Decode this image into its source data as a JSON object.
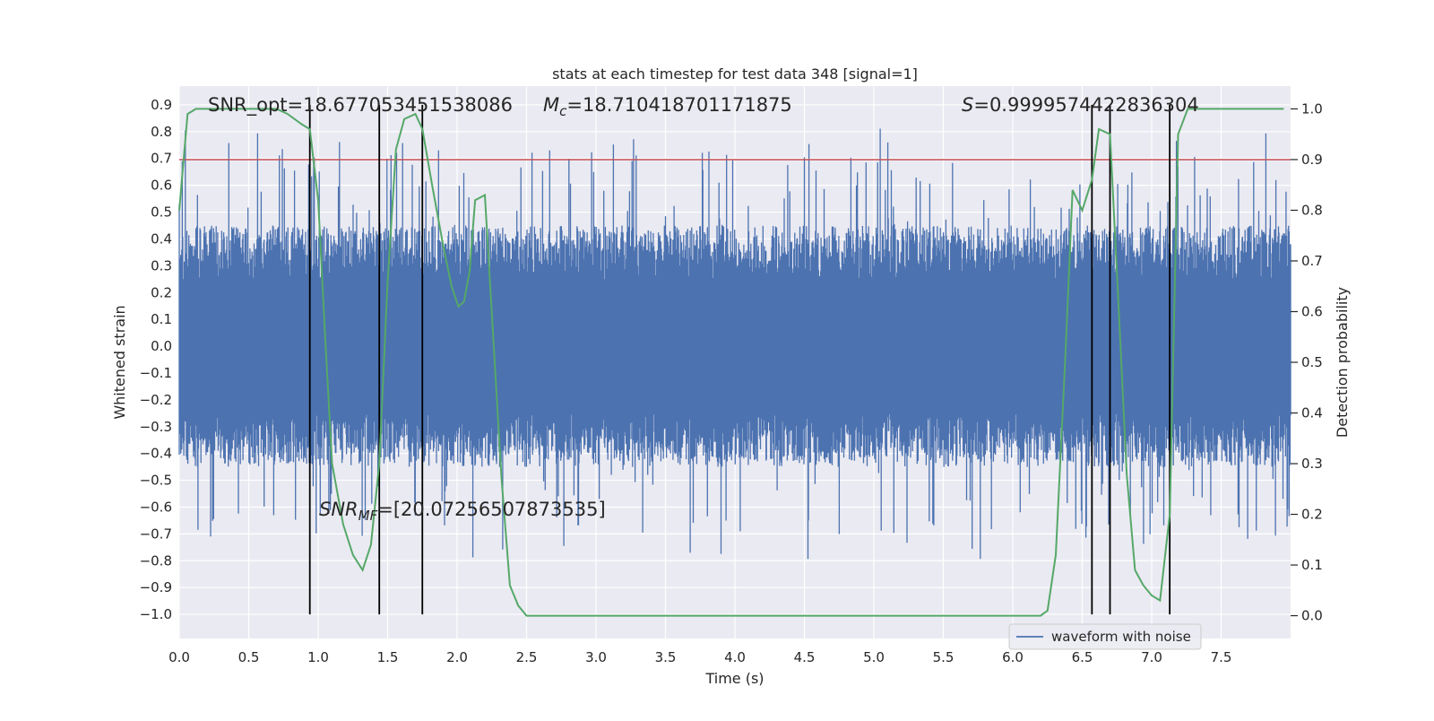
{
  "chart_data": {
    "type": "line",
    "title": "stats at each timestep for test data 348 [signal=1]",
    "xlabel": "Time (s)",
    "ylabel": "Whitened strain",
    "ylabel_right": "Detection probability",
    "xlim": [
      0.0,
      8.0
    ],
    "ylim": [
      -1.09,
      0.97
    ],
    "ylim_right": [
      -0.045,
      1.045
    ],
    "x_ticks": [
      0.0,
      0.5,
      1.0,
      1.5,
      2.0,
      2.5,
      3.0,
      3.5,
      4.0,
      4.5,
      5.0,
      5.5,
      6.0,
      6.5,
      7.0,
      7.5
    ],
    "x_tick_labels": [
      "0.0",
      "0.5",
      "1.0",
      "1.5",
      "2.0",
      "2.5",
      "3.0",
      "3.5",
      "4.0",
      "4.5",
      "5.0",
      "5.5",
      "6.0",
      "6.5",
      "7.0",
      "7.5"
    ],
    "y_ticks": [
      0.9,
      0.8,
      0.7,
      0.6,
      0.5,
      0.4,
      0.3,
      0.2,
      0.1,
      0.0,
      -0.1,
      -0.2,
      -0.3,
      -0.4,
      -0.5,
      -0.6,
      -0.7,
      -0.8,
      -0.9,
      -1.0
    ],
    "y_tick_labels": [
      "0.9",
      "0.8",
      "0.7",
      "0.6",
      "0.5",
      "0.4",
      "0.3",
      "0.2",
      "0.1",
      "0.0",
      "−0.1",
      "−0.2",
      "−0.3",
      "−0.4",
      "−0.5",
      "−0.6",
      "−0.7",
      "−0.8",
      "−0.9",
      "−1.0"
    ],
    "y_right_ticks": [
      1.0,
      0.9,
      0.8,
      0.7,
      0.6,
      0.5,
      0.4,
      0.3,
      0.2,
      0.1,
      0.0
    ],
    "y_right_tick_labels": [
      "1.0",
      "0.9",
      "0.8",
      "0.7",
      "0.6",
      "0.5",
      "0.4",
      "0.3",
      "0.2",
      "0.1",
      "0.0"
    ],
    "grid": true,
    "legend": {
      "position": "bottom-right",
      "entries": [
        {
          "label": "waveform with noise",
          "color": "#4c72b0"
        }
      ]
    },
    "threshold_line": {
      "y_right": 0.9,
      "color": "#c44e52"
    },
    "vertical_lines": {
      "x": [
        0.94,
        1.44,
        1.75,
        6.57,
        6.7,
        7.13
      ],
      "y_from": -1.0,
      "y_to": 0.9,
      "color": "#000000"
    },
    "waveform": {
      "name": "waveform with noise",
      "color": "#4c72b0",
      "n_samples": 2200,
      "core_amplitude": 0.45,
      "seed": 348
    },
    "series": [
      {
        "name": "detection probability",
        "axis": "right",
        "color": "#55a868",
        "x": [
          0.0,
          0.06,
          0.12,
          0.2,
          0.3,
          0.4,
          0.5,
          0.6,
          0.7,
          0.78,
          0.88,
          0.94,
          1.0,
          1.05,
          1.1,
          1.18,
          1.25,
          1.32,
          1.38,
          1.44,
          1.5,
          1.56,
          1.62,
          1.7,
          1.75,
          1.82,
          1.9,
          1.96,
          2.01,
          2.05,
          2.09,
          2.13,
          2.2,
          2.26,
          2.32,
          2.38,
          2.44,
          2.5,
          2.6,
          2.8,
          3.0,
          3.2,
          3.5,
          3.8,
          4.0,
          4.3,
          4.6,
          5.0,
          5.3,
          5.6,
          6.0,
          6.2,
          6.25,
          6.31,
          6.38,
          6.43,
          6.5,
          6.57,
          6.62,
          6.7,
          6.76,
          6.82,
          6.88,
          6.94,
          7.0,
          7.06,
          7.13,
          7.19,
          7.26,
          7.3,
          7.4,
          7.6,
          7.8,
          7.95
        ],
        "values": [
          0.8,
          0.99,
          1.0,
          1.0,
          1.0,
          1.0,
          1.0,
          1.0,
          1.0,
          0.99,
          0.97,
          0.96,
          0.82,
          0.55,
          0.3,
          0.18,
          0.12,
          0.09,
          0.14,
          0.3,
          0.66,
          0.92,
          0.98,
          0.99,
          0.96,
          0.85,
          0.73,
          0.65,
          0.61,
          0.62,
          0.68,
          0.82,
          0.83,
          0.55,
          0.27,
          0.06,
          0.02,
          0.0,
          0.0,
          0.0,
          0.0,
          0.0,
          0.0,
          0.0,
          0.0,
          0.0,
          0.0,
          0.0,
          0.0,
          0.0,
          0.0,
          0.0,
          0.01,
          0.12,
          0.52,
          0.84,
          0.8,
          0.86,
          0.96,
          0.95,
          0.62,
          0.28,
          0.09,
          0.06,
          0.04,
          0.03,
          0.2,
          0.95,
          1.0,
          1.0,
          1.0,
          1.0,
          1.0,
          1.0
        ]
      }
    ],
    "annotations": {
      "snr_opt": "SNR_opt=18.677053451538086",
      "mc": "=18.710418701171875",
      "mc_symbol": "M",
      "mc_subscript": "c",
      "s_stat": "=0.9999574422836304",
      "s_symbol": "S",
      "snr_mf": "=[20.07256507873535]",
      "snr_mf_symbol": "SNR",
      "snr_mf_subscript": "MF"
    }
  }
}
